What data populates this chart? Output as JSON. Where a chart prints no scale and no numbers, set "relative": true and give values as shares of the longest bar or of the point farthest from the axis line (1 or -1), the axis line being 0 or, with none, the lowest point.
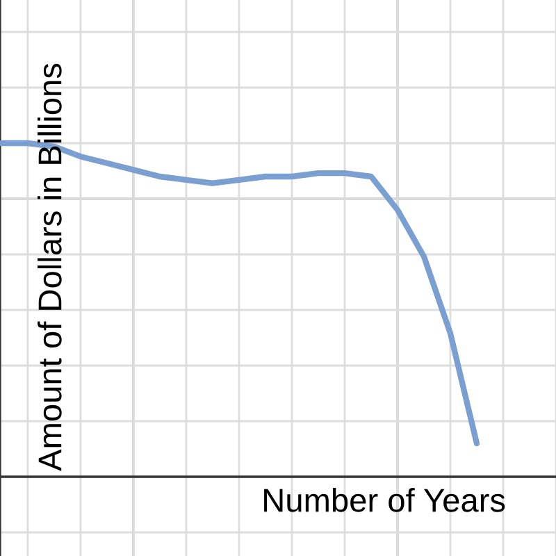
{
  "chart_data": {
    "type": "line",
    "relative": true,
    "xlabel": "Number of Years",
    "ylabel": "Amount of Dollars in Billions",
    "grid": true,
    "categories": [
      null,
      null,
      null,
      null,
      null,
      null,
      null,
      null,
      null,
      null,
      null,
      null,
      null,
      null,
      null,
      null,
      null,
      null,
      null,
      null
    ],
    "series": [
      {
        "color": "#7b9fd0",
        "values": [
          1.0,
          1.0,
          0.99,
          0.96,
          0.94,
          0.92,
          0.9,
          0.89,
          0.88,
          0.89,
          0.9,
          0.9,
          0.91,
          0.91,
          0.9,
          0.8,
          0.66,
          0.43,
          0.1,
          null
        ]
      }
    ]
  }
}
